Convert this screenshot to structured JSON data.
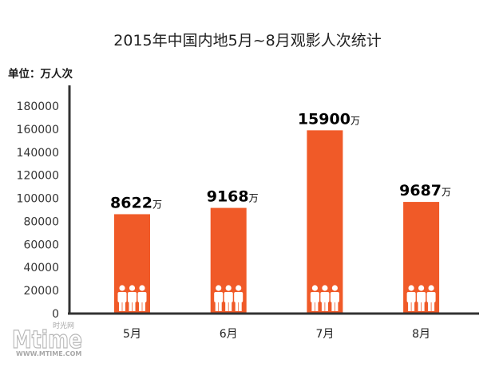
{
  "chart_data": {
    "type": "bar",
    "title": "2015年中国内地5月~8月观影人次统计",
    "ylabel": "单位：万人次",
    "categories": [
      "5月",
      "6月",
      "7月",
      "8月"
    ],
    "values": [
      8622,
      9168,
      15900,
      9687
    ],
    "data_label_suffix": "万",
    "yticks": [
      0,
      20000,
      40000,
      60000,
      80000,
      100000,
      120000,
      140000,
      160000,
      180000
    ],
    "ylim": [
      0,
      180000
    ],
    "grid": false
  },
  "colors": {
    "bar": "#F05A28",
    "icon": "#FFFFFF",
    "axis": "#333333",
    "text": "#222222"
  },
  "icons": {
    "bar_decoration": "person-icon"
  },
  "watermark": {
    "logo": "Mtime",
    "brand": "时光网",
    "url": "WWW.MTIME.COM"
  }
}
